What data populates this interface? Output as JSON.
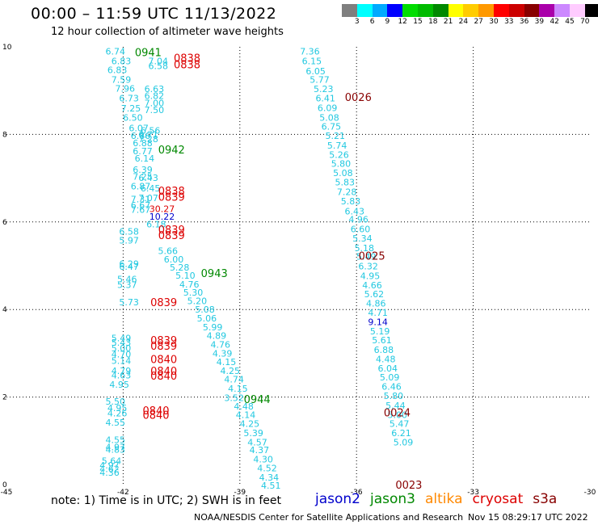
{
  "title": "00:00 – 11:59 UTC 11/13/2022",
  "subtitle": "12 hour collection of altimeter wave heights",
  "color_legend": {
    "unit": "(ft)",
    "entries": [
      {
        "label": "3",
        "color": "#7f7f7f"
      },
      {
        "label": "6",
        "color": "#00ffff"
      },
      {
        "label": "9",
        "color": "#00aaff"
      },
      {
        "label": "12",
        "color": "#0000ff"
      },
      {
        "label": "15",
        "color": "#00dd00"
      },
      {
        "label": "18",
        "color": "#00bb00"
      },
      {
        "label": "21",
        "color": "#008800"
      },
      {
        "label": "24",
        "color": "#ffff00"
      },
      {
        "label": "27",
        "color": "#ffcc00"
      },
      {
        "label": "30",
        "color": "#ff9900"
      },
      {
        "label": "33",
        "color": "#ff0000"
      },
      {
        "label": "36",
        "color": "#cc0000"
      },
      {
        "label": "39",
        "color": "#880000"
      },
      {
        "label": "42",
        "color": "#aa00aa"
      },
      {
        "label": "45",
        "color": "#cc88ff"
      },
      {
        "label": "70",
        "color": "#ffccff"
      },
      {
        "label": "",
        "color": "#000000"
      }
    ]
  },
  "note": "note:  1) Time is in UTC;  2) SWH is in feet",
  "satellites": [
    {
      "name": "jason2",
      "color": "#0000cc"
    },
    {
      "name": "jason3",
      "color": "#008800"
    },
    {
      "name": "altika",
      "color": "#ff8800"
    },
    {
      "name": "cryosat",
      "color": "#dd0000"
    },
    {
      "name": "s3a",
      "color": "#880000"
    }
  ],
  "footer_left": "NOAA/NESDIS Center for Satellite Applications and Research",
  "footer_right": "Nov 15 08:29:17 UTC 2022",
  "chart_data": {
    "type": "scatter",
    "title": "00:00 – 11:59 UTC 11/13/2022",
    "xlim": [
      -45,
      -30
    ],
    "ylim": [
      0,
      10
    ],
    "x_ticks": [
      "-45",
      "-42",
      "-39",
      "-36",
      "-33",
      "-30"
    ],
    "y_ticks": [
      "0",
      "2",
      "4",
      "6",
      "8",
      "10"
    ],
    "grid": true,
    "time_labels": [
      {
        "text": "0941",
        "x": -41.7,
        "y": 9.88,
        "color": "#008800"
      },
      {
        "text": "0838",
        "x": -40.7,
        "y": 9.75,
        "color": "#dd0000"
      },
      {
        "text": "0838",
        "x": -40.7,
        "y": 9.6,
        "color": "#dd0000"
      },
      {
        "text": "0026",
        "x": -36.3,
        "y": 8.86,
        "color": "#880000"
      },
      {
        "text": "0942",
        "x": -41.1,
        "y": 7.66,
        "color": "#008800"
      },
      {
        "text": "0838",
        "x": -41.1,
        "y": 6.72,
        "color": "#dd0000"
      },
      {
        "text": "0839",
        "x": -41.1,
        "y": 6.58,
        "color": "#dd0000"
      },
      {
        "text": "0839",
        "x": -41.1,
        "y": 5.83,
        "color": "#dd0000"
      },
      {
        "text": "0839",
        "x": -41.1,
        "y": 5.7,
        "color": "#dd0000"
      },
      {
        "text": "0025",
        "x": -35.95,
        "y": 5.23,
        "color": "#880000"
      },
      {
        "text": "0943",
        "x": -40.0,
        "y": 4.83,
        "color": "#008800"
      },
      {
        "text": "0839",
        "x": -41.3,
        "y": 4.17,
        "color": "#dd0000"
      },
      {
        "text": "0839",
        "x": -41.3,
        "y": 3.3,
        "color": "#dd0000"
      },
      {
        "text": "0839",
        "x": -41.3,
        "y": 3.17,
        "color": "#dd0000"
      },
      {
        "text": "0840",
        "x": -41.3,
        "y": 2.87,
        "color": "#dd0000"
      },
      {
        "text": "0840",
        "x": -41.3,
        "y": 2.6,
        "color": "#dd0000"
      },
      {
        "text": "0840",
        "x": -41.3,
        "y": 2.49,
        "color": "#dd0000"
      },
      {
        "text": "0944",
        "x": -38.9,
        "y": 1.96,
        "color": "#008800"
      },
      {
        "text": "0840",
        "x": -41.5,
        "y": 1.7,
        "color": "#dd0000"
      },
      {
        "text": "0840",
        "x": -41.5,
        "y": 1.6,
        "color": "#dd0000"
      },
      {
        "text": "0024",
        "x": -35.3,
        "y": 1.65,
        "color": "#880000"
      },
      {
        "text": "0023",
        "x": -35.0,
        "y": 0.0,
        "color": "#880000"
      }
    ],
    "series": [
      {
        "color": "#22c8e0",
        "points": [
          {
            "x": -42.2,
            "y": 9.9,
            "v": "6.74"
          },
          {
            "x": -42.05,
            "y": 9.68,
            "v": "6.83"
          },
          {
            "x": -42.15,
            "y": 9.47,
            "v": "6.83"
          },
          {
            "x": -42.05,
            "y": 9.25,
            "v": "7.59"
          },
          {
            "x": -41.95,
            "y": 9.05,
            "v": "7.96"
          },
          {
            "x": -41.85,
            "y": 8.83,
            "v": "6.73"
          },
          {
            "x": -41.8,
            "y": 8.6,
            "v": "7.25"
          },
          {
            "x": -41.75,
            "y": 8.39,
            "v": "6.50"
          },
          {
            "x": -41.6,
            "y": 8.15,
            "v": "6.07"
          },
          {
            "x": -41.55,
            "y": 7.97,
            "v": "6.86"
          },
          {
            "x": -41.5,
            "y": 7.8,
            "v": "6.88"
          },
          {
            "x": -41.1,
            "y": 9.68,
            "v": "7.04"
          },
          {
            "x": -41.1,
            "y": 9.57,
            "v": "6.58"
          },
          {
            "x": -41.2,
            "y": 9.04,
            "v": "6.63"
          },
          {
            "x": -41.2,
            "y": 8.88,
            "v": "6.82"
          },
          {
            "x": -41.2,
            "y": 8.72,
            "v": "7.00"
          },
          {
            "x": -41.2,
            "y": 8.56,
            "v": "7.50"
          },
          {
            "x": -41.3,
            "y": 8.09,
            "v": "6.56"
          },
          {
            "x": -41.35,
            "y": 8.0,
            "v": "6.71"
          },
          {
            "x": -41.35,
            "y": 7.9,
            "v": "7.28"
          },
          {
            "x": -41.5,
            "y": 7.62,
            "v": "6.77"
          },
          {
            "x": -41.45,
            "y": 7.45,
            "v": "6.14"
          },
          {
            "x": -41.5,
            "y": 7.2,
            "v": "6.39"
          },
          {
            "x": -41.5,
            "y": 7.04,
            "v": "7.25"
          },
          {
            "x": -41.35,
            "y": 7.01,
            "v": "6.43"
          },
          {
            "x": -41.55,
            "y": 6.82,
            "v": "6.87"
          },
          {
            "x": -41.3,
            "y": 6.77,
            "v": "6.45"
          },
          {
            "x": -41.55,
            "y": 6.52,
            "v": "7.31"
          },
          {
            "x": -41.55,
            "y": 6.38,
            "v": "6.67"
          },
          {
            "x": -41.55,
            "y": 6.28,
            "v": "7.67"
          },
          {
            "x": -41.35,
            "y": 6.55,
            "v": "7.07"
          },
          {
            "x": -41.15,
            "y": 5.95,
            "v": "6.18"
          },
          {
            "x": -41.85,
            "y": 5.78,
            "v": "6.58"
          },
          {
            "x": -41.85,
            "y": 5.58,
            "v": "5.97"
          },
          {
            "x": -40.85,
            "y": 5.34,
            "v": "5.66"
          },
          {
            "x": -40.7,
            "y": 5.15,
            "v": "6.00"
          },
          {
            "x": -40.55,
            "y": 4.96,
            "v": "5.28"
          },
          {
            "x": -40.4,
            "y": 4.78,
            "v": "5.10"
          },
          {
            "x": -40.3,
            "y": 4.58,
            "v": "4.76"
          },
          {
            "x": -40.2,
            "y": 4.39,
            "v": "5.30"
          },
          {
            "x": -40.1,
            "y": 4.2,
            "v": "5.20"
          },
          {
            "x": -39.9,
            "y": 4.0,
            "v": "5.08"
          },
          {
            "x": -39.85,
            "y": 3.8,
            "v": "5.06"
          },
          {
            "x": -39.7,
            "y": 3.6,
            "v": "5.99"
          },
          {
            "x": -39.6,
            "y": 3.4,
            "v": "4.89"
          },
          {
            "x": -39.5,
            "y": 3.2,
            "v": "4.76"
          },
          {
            "x": -39.45,
            "y": 3.0,
            "v": "4.39"
          },
          {
            "x": -39.35,
            "y": 2.8,
            "v": "4.15"
          },
          {
            "x": -39.25,
            "y": 2.6,
            "v": "4.25"
          },
          {
            "x": -39.15,
            "y": 2.41,
            "v": "4.74"
          },
          {
            "x": -39.05,
            "y": 2.2,
            "v": "4.15"
          },
          {
            "x": -39.15,
            "y": 1.98,
            "v": "3.52"
          },
          {
            "x": -38.9,
            "y": 1.79,
            "v": "4.48"
          },
          {
            "x": -38.85,
            "y": 1.6,
            "v": "4.14"
          },
          {
            "x": -38.75,
            "y": 1.39,
            "v": "4.25"
          },
          {
            "x": -38.65,
            "y": 1.18,
            "v": "5.39"
          },
          {
            "x": -38.55,
            "y": 0.97,
            "v": "4.57"
          },
          {
            "x": -38.5,
            "y": 0.79,
            "v": "4.37"
          },
          {
            "x": -38.4,
            "y": 0.58,
            "v": "4.30"
          },
          {
            "x": -38.3,
            "y": 0.38,
            "v": "4.52"
          },
          {
            "x": -38.25,
            "y": 0.17,
            "v": "4.34"
          },
          {
            "x": -38.2,
            "y": -0.02,
            "v": "4.51"
          },
          {
            "x": -41.85,
            "y": 5.05,
            "v": "6.29"
          },
          {
            "x": -41.85,
            "y": 4.98,
            "v": "6.47"
          },
          {
            "x": -41.9,
            "y": 4.7,
            "v": "5.46"
          },
          {
            "x": -41.9,
            "y": 4.57,
            "v": "5.37"
          },
          {
            "x": -41.85,
            "y": 4.17,
            "v": "5.73"
          },
          {
            "x": -42.05,
            "y": 3.35,
            "v": "5.49"
          },
          {
            "x": -42.05,
            "y": 3.25,
            "v": "5.43"
          },
          {
            "x": -42.05,
            "y": 3.12,
            "v": "5.00"
          },
          {
            "x": -42.05,
            "y": 2.98,
            "v": "4.70"
          },
          {
            "x": -42.05,
            "y": 2.83,
            "v": "5.14"
          },
          {
            "x": -42.05,
            "y": 2.6,
            "v": "4.79"
          },
          {
            "x": -42.05,
            "y": 2.5,
            "v": "4.63"
          },
          {
            "x": -42.1,
            "y": 2.29,
            "v": "4.95"
          },
          {
            "x": -42.2,
            "y": 1.9,
            "v": "5.50"
          },
          {
            "x": -42.15,
            "y": 1.75,
            "v": "4.95"
          },
          {
            "x": -42.15,
            "y": 1.63,
            "v": "4.26"
          },
          {
            "x": -42.2,
            "y": 1.42,
            "v": "4.55"
          },
          {
            "x": -42.2,
            "y": 1.02,
            "v": "4.55"
          },
          {
            "x": -42.2,
            "y": 0.86,
            "v": "4.97"
          },
          {
            "x": -42.2,
            "y": 0.8,
            "v": "4.83"
          },
          {
            "x": -42.3,
            "y": 0.54,
            "v": "5.64"
          },
          {
            "x": -42.35,
            "y": 0.44,
            "v": "4.97"
          },
          {
            "x": -42.35,
            "y": 0.36,
            "v": "4.62"
          },
          {
            "x": -42.35,
            "y": 0.28,
            "v": "4.36"
          },
          {
            "x": -37.2,
            "y": 9.9,
            "v": "7.36"
          },
          {
            "x": -37.15,
            "y": 9.68,
            "v": "6.15"
          },
          {
            "x": -37.05,
            "y": 9.45,
            "v": "6.05"
          },
          {
            "x": -36.95,
            "y": 9.25,
            "v": "5.77"
          },
          {
            "x": -36.85,
            "y": 9.04,
            "v": "5.23"
          },
          {
            "x": -36.8,
            "y": 8.83,
            "v": "6.41"
          },
          {
            "x": -36.75,
            "y": 8.61,
            "v": "6.09"
          },
          {
            "x": -36.7,
            "y": 8.39,
            "v": "5.08"
          },
          {
            "x": -36.65,
            "y": 8.18,
            "v": "6.75"
          },
          {
            "x": -36.55,
            "y": 7.97,
            "v": "5.21"
          },
          {
            "x": -36.5,
            "y": 7.75,
            "v": "5.74"
          },
          {
            "x": -36.45,
            "y": 7.54,
            "v": "5.26"
          },
          {
            "x": -36.4,
            "y": 7.33,
            "v": "5.80"
          },
          {
            "x": -36.35,
            "y": 7.12,
            "v": "5.08"
          },
          {
            "x": -36.3,
            "y": 6.91,
            "v": "5.83"
          },
          {
            "x": -36.25,
            "y": 6.69,
            "v": "7.28"
          },
          {
            "x": -36.15,
            "y": 6.48,
            "v": "5.83"
          },
          {
            "x": -36.05,
            "y": 6.25,
            "v": "6.43"
          },
          {
            "x": -35.95,
            "y": 6.06,
            "v": "4.96"
          },
          {
            "x": -35.9,
            "y": 5.84,
            "v": "6.60"
          },
          {
            "x": -35.85,
            "y": 5.63,
            "v": "5.34"
          },
          {
            "x": -35.8,
            "y": 5.41,
            "v": "5.18"
          },
          {
            "x": -35.75,
            "y": 5.21,
            "v": "5.49"
          },
          {
            "x": -35.7,
            "y": 4.99,
            "v": "6.32"
          },
          {
            "x": -35.65,
            "y": 4.77,
            "v": "4.95"
          },
          {
            "x": -35.6,
            "y": 4.56,
            "v": "4.66"
          },
          {
            "x": -35.55,
            "y": 4.35,
            "v": "5.62"
          },
          {
            "x": -35.5,
            "y": 4.14,
            "v": "4.86"
          },
          {
            "x": -35.45,
            "y": 3.93,
            "v": "4.71"
          },
          {
            "x": -35.4,
            "y": 3.51,
            "v": "5.19"
          },
          {
            "x": -35.35,
            "y": 3.3,
            "v": "5.61"
          },
          {
            "x": -35.3,
            "y": 3.08,
            "v": "6.88"
          },
          {
            "x": -35.25,
            "y": 2.87,
            "v": "4.48"
          },
          {
            "x": -35.2,
            "y": 2.66,
            "v": "6.04"
          },
          {
            "x": -35.15,
            "y": 2.45,
            "v": "5.09"
          },
          {
            "x": -35.1,
            "y": 2.24,
            "v": "6.46"
          },
          {
            "x": -35.05,
            "y": 2.03,
            "v": "5.80"
          },
          {
            "x": -35.0,
            "y": 1.81,
            "v": "5.44"
          },
          {
            "x": -34.95,
            "y": 1.6,
            "v": "5.00"
          },
          {
            "x": -34.9,
            "y": 1.39,
            "v": "5.47"
          },
          {
            "x": -34.85,
            "y": 1.18,
            "v": "6.21"
          },
          {
            "x": -34.8,
            "y": 0.97,
            "v": "5.09"
          }
        ]
      },
      {
        "color": "#0000cc",
        "points": [
          {
            "x": -35.45,
            "y": 3.72,
            "v": "9.14"
          },
          {
            "x": -41.0,
            "y": 6.13,
            "v": "10.22"
          }
        ]
      },
      {
        "color": "#dd0000",
        "points": [
          {
            "x": -41.0,
            "y": 6.3,
            "v": "30.27"
          }
        ]
      }
    ]
  }
}
